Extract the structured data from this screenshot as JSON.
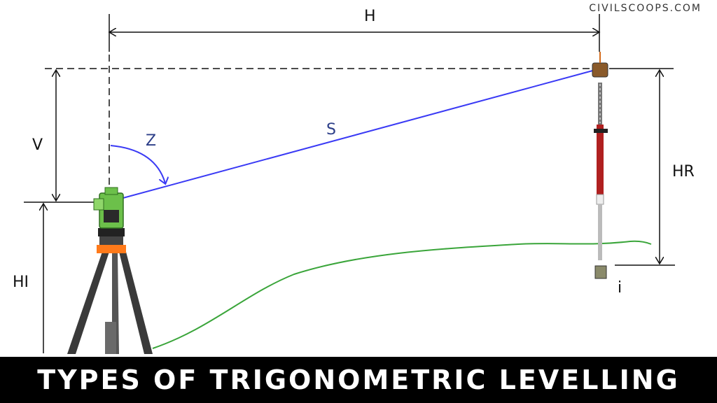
{
  "watermark": "CIVILSCOOPS.COM",
  "labels": {
    "horizontal": "H",
    "vertical": "V",
    "zenith": "Z",
    "slope": "S",
    "height_instrument": "HI",
    "height_reflector": "HR",
    "station": "i"
  },
  "footer": {
    "title": "TYPES OF TRIGONOMETRIC LEVELLING"
  },
  "colors": {
    "slope_line": "#3a3af5",
    "ground": "#3aa53a",
    "instrument": "#6cc04a",
    "rod_red": "#b02020",
    "footer_bg": "#000000"
  }
}
